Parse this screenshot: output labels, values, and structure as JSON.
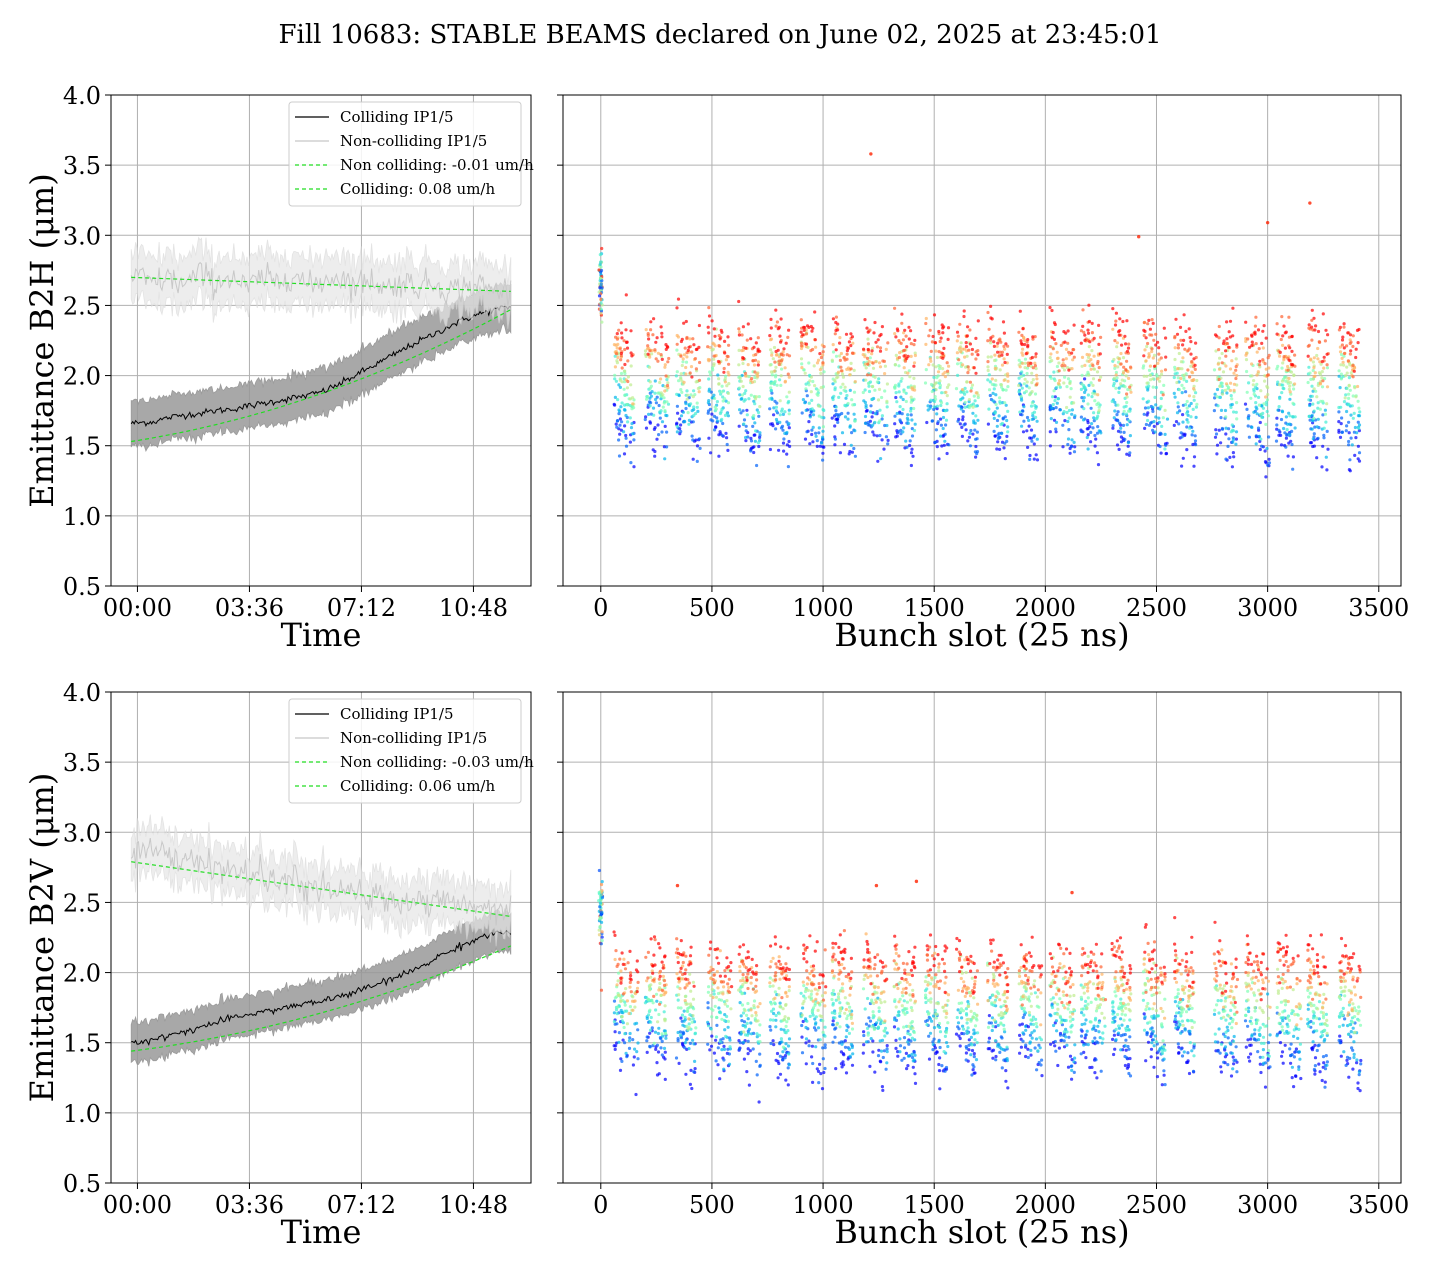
{
  "figure": {
    "title": "Fill 10683: STABLE BEAMS declared on June 02, 2025 at 23:45:01"
  },
  "colors": {
    "colliding": "#000000",
    "colliding_band": "#999999",
    "noncolliding": "#c8c8c8",
    "noncolliding_band": "#e6e6e6",
    "fit": "#22dd22",
    "grid": "#b0b0b0",
    "colormap": "rainbow"
  },
  "chart_data": [
    {
      "id": "b2h-time",
      "type": "line",
      "ylabel": "Emittance B2H (μm)",
      "xlabel": "Time",
      "ylim": [
        0.5,
        4.0
      ],
      "xlim_hours": [
        -0.85,
        12.65
      ],
      "yticks": [
        "0.5",
        "1.0",
        "1.5",
        "2.0",
        "2.5",
        "3.0",
        "3.5",
        "4.0"
      ],
      "xticks": [
        {
          "hours": 0,
          "label": "00:00"
        },
        {
          "hours": 3.6,
          "label": "03:36"
        },
        {
          "hours": 7.2,
          "label": "07:12"
        },
        {
          "hours": 10.8,
          "label": "10:48"
        }
      ],
      "grid": true,
      "legend_placement": "top-right",
      "x_hours": [
        -0.2,
        0.5,
        1.0,
        1.5,
        2.0,
        2.5,
        3.0,
        3.5,
        4.0,
        4.5,
        5.0,
        5.5,
        6.0,
        6.5,
        7.0,
        7.5,
        8.0,
        8.5,
        9.0,
        9.5,
        10.0,
        10.5,
        11.0,
        11.5,
        12.0
      ],
      "series": [
        {
          "name": "Colliding IP1/5",
          "style": "colliding",
          "values": [
            1.66,
            1.67,
            1.7,
            1.72,
            1.73,
            1.75,
            1.76,
            1.78,
            1.8,
            1.82,
            1.84,
            1.86,
            1.89,
            1.94,
            2.0,
            2.06,
            2.12,
            2.18,
            2.24,
            2.29,
            2.35,
            2.4,
            2.44,
            2.47,
            2.49
          ],
          "band": 0.16
        },
        {
          "name": "Non-colliding IP1/5",
          "style": "noncolliding",
          "values": [
            2.72,
            2.66,
            2.7,
            2.64,
            2.73,
            2.66,
            2.71,
            2.62,
            2.7,
            2.66,
            2.74,
            2.63,
            2.68,
            2.71,
            2.64,
            2.69,
            2.62,
            2.67,
            2.64,
            2.66,
            2.61,
            2.63,
            2.65,
            2.6,
            2.62
          ],
          "band": 0.17
        },
        {
          "name": "Non colliding: -0.01 um/h",
          "style": "fit",
          "x_hours": [
            -0.2,
            12.0
          ],
          "values": [
            2.7,
            2.6
          ]
        },
        {
          "name": "Colliding: 0.08 um/h",
          "style": "fit",
          "x_hours": [
            -0.2,
            12.0
          ],
          "values": [
            1.53,
            2.47
          ],
          "curved": true
        }
      ]
    },
    {
      "id": "b2h-bunch",
      "type": "scatter",
      "xlabel": "Bunch slot (25 ns)",
      "ylim": [
        0.5,
        4.0
      ],
      "xlim": [
        -170,
        3600
      ],
      "xticks": [
        "0",
        "500",
        "1000",
        "1500",
        "2000",
        "2500",
        "3000",
        "3500"
      ],
      "grid": true,
      "colormap": "rainbow",
      "trains_start": [
        60,
        200,
        340,
        480,
        620,
        760,
        900,
        1040,
        1180,
        1320,
        1460,
        1600,
        1740,
        1880,
        2020,
        2160,
        2300,
        2440,
        2580,
        2760,
        2900,
        3040,
        3180,
        3320
      ],
      "train_length_slots": 100,
      "top_level": 2.35,
      "bottom_level": 1.7,
      "outliers": [
        [
          1215,
          3.58
        ],
        [
          3190,
          3.23
        ],
        [
          3000,
          3.09
        ],
        [
          2420,
          2.99
        ]
      ]
    },
    {
      "id": "b2v-time",
      "type": "line",
      "ylabel": "Emittance B2V (μm)",
      "xlabel": "Time",
      "ylim": [
        0.5,
        4.0
      ],
      "xlim_hours": [
        -0.85,
        12.65
      ],
      "yticks": [
        "0.5",
        "1.0",
        "1.5",
        "2.0",
        "2.5",
        "3.0",
        "3.5",
        "4.0"
      ],
      "xticks": [
        {
          "hours": 0,
          "label": "00:00"
        },
        {
          "hours": 3.6,
          "label": "03:36"
        },
        {
          "hours": 7.2,
          "label": "07:12"
        },
        {
          "hours": 10.8,
          "label": "10:48"
        }
      ],
      "grid": true,
      "legend_placement": "top-right",
      "x_hours": [
        -0.2,
        0.5,
        1.0,
        1.5,
        2.0,
        2.5,
        3.0,
        3.5,
        4.0,
        4.5,
        5.0,
        5.5,
        6.0,
        6.5,
        7.0,
        7.5,
        8.0,
        8.5,
        9.0,
        9.5,
        10.0,
        10.5,
        11.0,
        11.5,
        12.0
      ],
      "series": [
        {
          "name": "Colliding IP1/5",
          "style": "colliding",
          "values": [
            1.5,
            1.52,
            1.55,
            1.58,
            1.61,
            1.64,
            1.67,
            1.7,
            1.72,
            1.74,
            1.76,
            1.78,
            1.8,
            1.83,
            1.86,
            1.9,
            1.94,
            1.98,
            2.03,
            2.09,
            2.15,
            2.2,
            2.25,
            2.28,
            2.29
          ],
          "band": 0.14
        },
        {
          "name": "Non-colliding IP1/5",
          "style": "noncolliding",
          "values": [
            2.85,
            2.92,
            2.8,
            2.78,
            2.83,
            2.72,
            2.75,
            2.68,
            2.72,
            2.62,
            2.67,
            2.58,
            2.62,
            2.55,
            2.58,
            2.52,
            2.55,
            2.49,
            2.53,
            2.48,
            2.52,
            2.46,
            2.5,
            2.45,
            2.47
          ],
          "band": 0.16
        },
        {
          "name": "Non colliding: -0.03 um/h",
          "style": "fit",
          "x_hours": [
            -0.2,
            12.0
          ],
          "values": [
            2.79,
            2.4
          ]
        },
        {
          "name": "Colliding: 0.06 um/h",
          "style": "fit",
          "x_hours": [
            -0.2,
            12.0
          ],
          "values": [
            1.44,
            2.19
          ],
          "curved": true
        }
      ]
    },
    {
      "id": "b2v-bunch",
      "type": "scatter",
      "xlabel": "Bunch slot (25 ns)",
      "ylim": [
        0.5,
        4.0
      ],
      "xlim": [
        -170,
        3600
      ],
      "xticks": [
        "0",
        "500",
        "1000",
        "1500",
        "2000",
        "2500",
        "3000",
        "3500"
      ],
      "grid": true,
      "colormap": "rainbow",
      "trains_start": [
        60,
        200,
        340,
        480,
        620,
        760,
        900,
        1040,
        1180,
        1320,
        1460,
        1600,
        1740,
        1880,
        2020,
        2160,
        2300,
        2440,
        2580,
        2760,
        2900,
        3040,
        3180,
        3320
      ],
      "train_length_slots": 100,
      "top_level": 2.15,
      "bottom_level": 1.55,
      "outliers": [
        [
          1420,
          2.65
        ],
        [
          2120,
          2.57
        ],
        [
          345,
          2.62
        ],
        [
          1240,
          2.62
        ]
      ]
    }
  ]
}
